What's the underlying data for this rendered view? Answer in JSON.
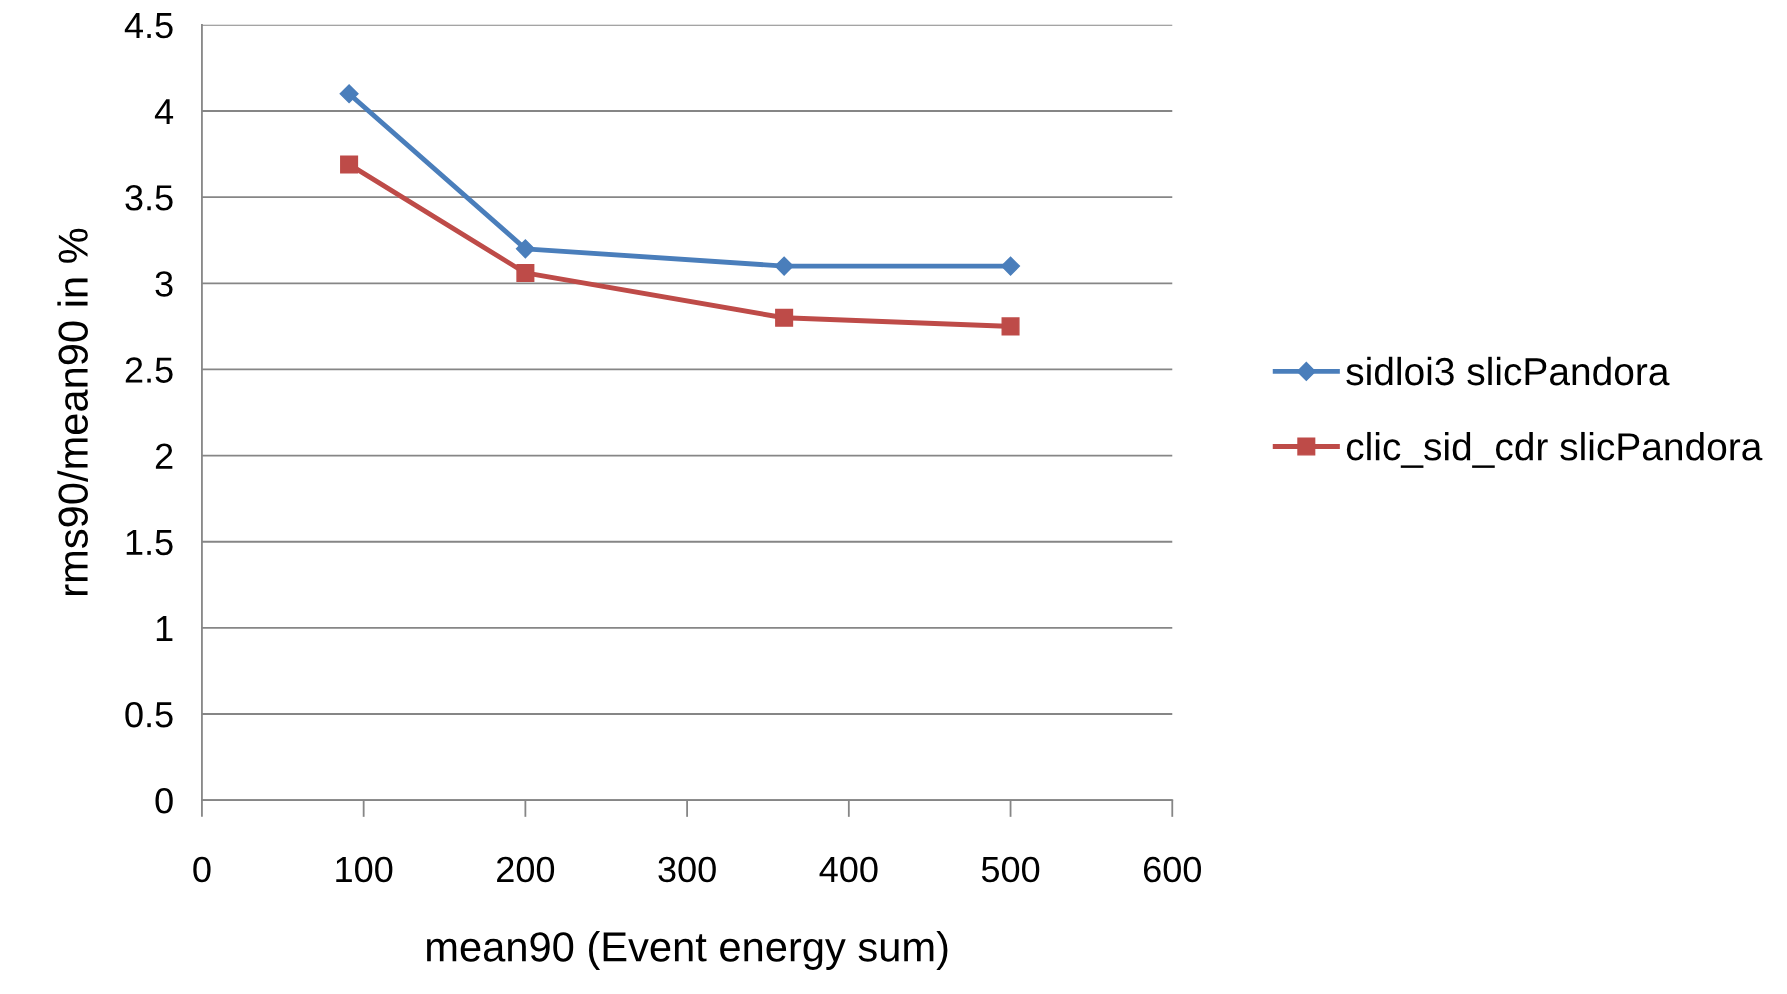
{
  "chart_data": {
    "type": "line",
    "xlabel": "mean90 (Event energy sum)",
    "ylabel": "rms90/mean90 in %",
    "series": [
      {
        "name": "sidloi3 slicPandora",
        "color": "#4a7ebb",
        "marker": "diamond",
        "x": [
          91,
          200,
          360,
          500
        ],
        "values": [
          4.1,
          3.2,
          3.1,
          3.1
        ]
      },
      {
        "name": "clic_sid_cdr slicPandora",
        "color": "#be4b48",
        "marker": "square",
        "x": [
          91,
          200,
          360,
          500
        ],
        "values": [
          3.69,
          3.06,
          2.8,
          2.75
        ]
      }
    ],
    "xlim": [
      0,
      600
    ],
    "xticks": [
      0,
      100,
      200,
      300,
      400,
      500,
      600
    ],
    "ylim": [
      0,
      4.5
    ],
    "yticks": [
      0,
      0.5,
      1,
      1.5,
      2,
      2.5,
      3,
      3.5,
      4,
      4.5
    ],
    "grid": "y",
    "legend": "right",
    "line_style": "solid"
  }
}
